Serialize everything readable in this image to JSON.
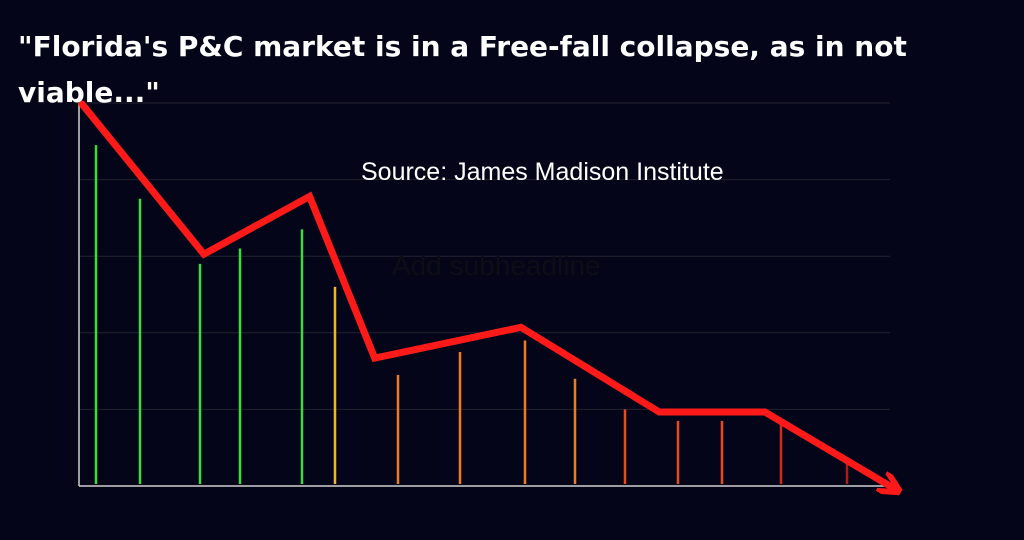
{
  "headline": "\"Florida's P&C market is in a Free-fall collapse, as in not viable...\"",
  "source": "Source: James Madison Institute",
  "subheadline_placeholder": "Add subheadline",
  "colors": {
    "background": "#05051a",
    "trend_line": "#ff1a1a",
    "grid": "#23232e",
    "axis": "#d0d0d0",
    "bar_palette": [
      "#3ddc3d",
      "#f2b330",
      "#f07a22",
      "#e84a1e",
      "#d42a18",
      "#b01a12"
    ]
  },
  "chart_data": {
    "type": "bar",
    "title": "\"Florida's P&C market is in a Free-fall collapse, as in not viable...\"",
    "subtitle": "Source: James Madison Institute",
    "xlabel": "",
    "ylabel": "",
    "grid": true,
    "ylim": [
      0,
      100
    ],
    "bars": [
      {
        "value": 89,
        "color": "#3ddc3d"
      },
      {
        "value": 75,
        "color": "#3ddc3d"
      },
      {
        "value": 58,
        "color": "#3ddc3d"
      },
      {
        "value": 62,
        "color": "#3ddc3d"
      },
      {
        "value": 67,
        "color": "#3ddc3d"
      },
      {
        "value": 52,
        "color": "#f2b330"
      },
      {
        "value": 29,
        "color": "#f07a22"
      },
      {
        "value": 35,
        "color": "#f07a22"
      },
      {
        "value": 38,
        "color": "#f07a22"
      },
      {
        "value": 28,
        "color": "#f07a22"
      },
      {
        "value": 20,
        "color": "#e84a1e"
      },
      {
        "value": 17,
        "color": "#e84a1e"
      },
      {
        "value": 17,
        "color": "#e84a1e"
      },
      {
        "value": 17,
        "color": "#d42a18"
      },
      {
        "value": 6,
        "color": "#b01a12"
      }
    ],
    "trend_line": [
      {
        "x": 0,
        "y": 100
      },
      {
        "x": 15,
        "y": 61
      },
      {
        "x": 28,
        "y": 76
      },
      {
        "x": 36,
        "y": 34
      },
      {
        "x": 54,
        "y": 42
      },
      {
        "x": 71,
        "y": 20
      },
      {
        "x": 84,
        "y": 20
      },
      {
        "x": 100,
        "y": 0
      }
    ]
  }
}
